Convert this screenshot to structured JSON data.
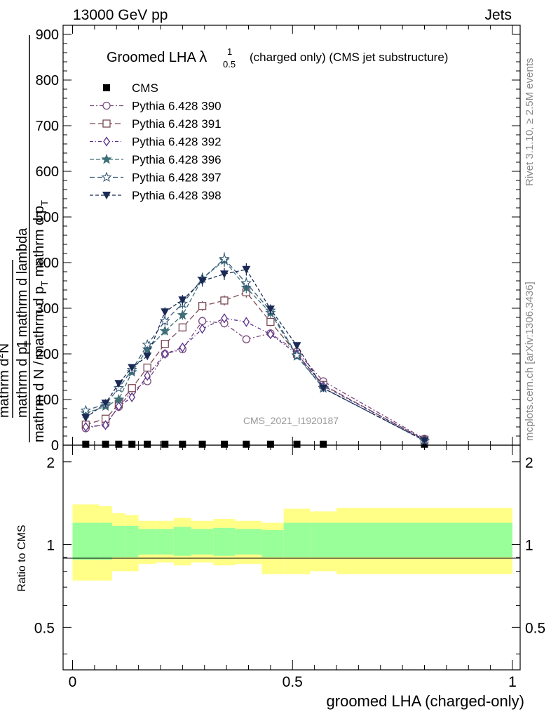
{
  "header": {
    "energy_label": "13000 GeV pp",
    "category_label": "Jets"
  },
  "side_labels": {
    "rivet": "Rivet 3.1.10, ≥ 2.5M events",
    "mcplots": "mcplots.cern.ch [arXiv:1306.3436]"
  },
  "chart_data": [
    {
      "type": "line",
      "title_main": "Groomed LHA",
      "title_lambda": "λ",
      "title_sup": "1",
      "title_sub": "0.5",
      "title_rest": "(charged only) (CMS jet substructure)",
      "watermark": "CMS_2021_I1920187",
      "ylabel_parts": [
        "1",
        "mathrm d N / mathrm d p",
        "T",
        "mathrm d p",
        "T",
        "mathrm d lambda",
        "mathrm d",
        "2",
        "N"
      ],
      "ylabel_line1": "mathrm d",
      "ylabel_line1_sup": "2",
      "ylabel_line1_end": "N",
      "ylabel_line2": "mathrm d p",
      "ylabel_line2_sub": "T",
      "ylabel_line2_end": "mathrm d lambda",
      "ylabel_num": "1",
      "ylabel_den": "mathrm d N / mathrm d p",
      "ylabel_den_sub": "T",
      "ylabel_den_end": "mathrm d p",
      "ylabel_den_end_sub": "T",
      "ylim": [
        0,
        920
      ],
      "xlim": [
        0,
        1
      ],
      "yticks": [
        "0",
        "100",
        "200",
        "300",
        "400",
        "500",
        "600",
        "700",
        "800",
        "900"
      ],
      "x": [
        0.03,
        0.075,
        0.105,
        0.135,
        0.17,
        0.21,
        0.25,
        0.295,
        0.345,
        0.395,
        0.45,
        0.51,
        0.57,
        0.8
      ],
      "series": [
        {
          "name": "CMS",
          "color": "#000000",
          "marker": "filled-square",
          "values": [
            2,
            2,
            2,
            2,
            2,
            2,
            2,
            2,
            2,
            2,
            2,
            2,
            2,
            2
          ]
        },
        {
          "name": "Pythia 6.428 390",
          "color": "#7b4a7e",
          "marker": "open-circle",
          "values": [
            37,
            46,
            84,
            118,
            140,
            200,
            210,
            272,
            267,
            232,
            245,
            205,
            140,
            14
          ]
        },
        {
          "name": "Pythia 6.428 391",
          "color": "#7a4a55",
          "marker": "open-square",
          "values": [
            45,
            58,
            90,
            125,
            170,
            222,
            258,
            305,
            317,
            335,
            270,
            200,
            132,
            12
          ]
        },
        {
          "name": "Pythia 6.428 392",
          "color": "#5a2f8a",
          "marker": "open-diamond",
          "values": [
            40,
            44,
            85,
            105,
            152,
            200,
            214,
            255,
            278,
            270,
            243,
            200,
            130,
            12
          ]
        },
        {
          "name": "Pythia 6.428 396",
          "color": "#3f6f78",
          "marker": "filled-star",
          "values": [
            70,
            85,
            100,
            160,
            210,
            250,
            285,
            365,
            405,
            345,
            290,
            195,
            125,
            10
          ]
        },
        {
          "name": "Pythia 6.428 397",
          "color": "#355a78",
          "marker": "open-star",
          "values": [
            76,
            90,
            125,
            165,
            220,
            272,
            310,
            365,
            408,
            355,
            295,
            197,
            125,
            10
          ]
        },
        {
          "name": "Pythia 6.428 398",
          "color": "#1a2a55",
          "marker": "filled-triangle-down",
          "values": [
            60,
            92,
            135,
            170,
            195,
            292,
            318,
            360,
            375,
            385,
            298,
            218,
            125,
            10
          ]
        }
      ]
    },
    {
      "type": "area",
      "ylabel": "Ratio to CMS",
      "xlabel": "groomed LHA (charged-only)",
      "ylim": [
        0.35,
        2.3
      ],
      "yscale": "log",
      "xlim": [
        0,
        1
      ],
      "xticks": [
        "0",
        "0.5",
        "1"
      ],
      "yticks": [
        "0.5",
        "1",
        "2"
      ],
      "bin_edges": [
        0,
        0.06,
        0.09,
        0.12,
        0.15,
        0.19,
        0.23,
        0.27,
        0.32,
        0.37,
        0.43,
        0.48,
        0.54,
        0.6,
        1.0
      ],
      "band_outer_up": [
        1.4,
        1.38,
        1.3,
        1.28,
        1.22,
        1.22,
        1.25,
        1.22,
        1.24,
        1.22,
        1.2,
        1.35,
        1.32,
        1.36
      ],
      "band_outer_down": [
        0.74,
        0.74,
        0.8,
        0.8,
        0.85,
        0.86,
        0.84,
        0.86,
        0.84,
        0.85,
        0.78,
        0.78,
        0.8,
        0.78
      ],
      "band_inner_up": [
        1.2,
        1.2,
        1.17,
        1.17,
        1.14,
        1.14,
        1.16,
        1.14,
        1.15,
        1.14,
        1.13,
        1.2,
        1.2,
        1.2
      ],
      "band_inner_down": [
        0.88,
        0.88,
        0.9,
        0.9,
        0.92,
        0.92,
        0.91,
        0.92,
        0.91,
        0.92,
        0.9,
        0.9,
        0.9,
        0.9
      ],
      "colors": {
        "outer": "#ffff88",
        "inner": "#99ff99",
        "line": "#000000"
      }
    }
  ]
}
